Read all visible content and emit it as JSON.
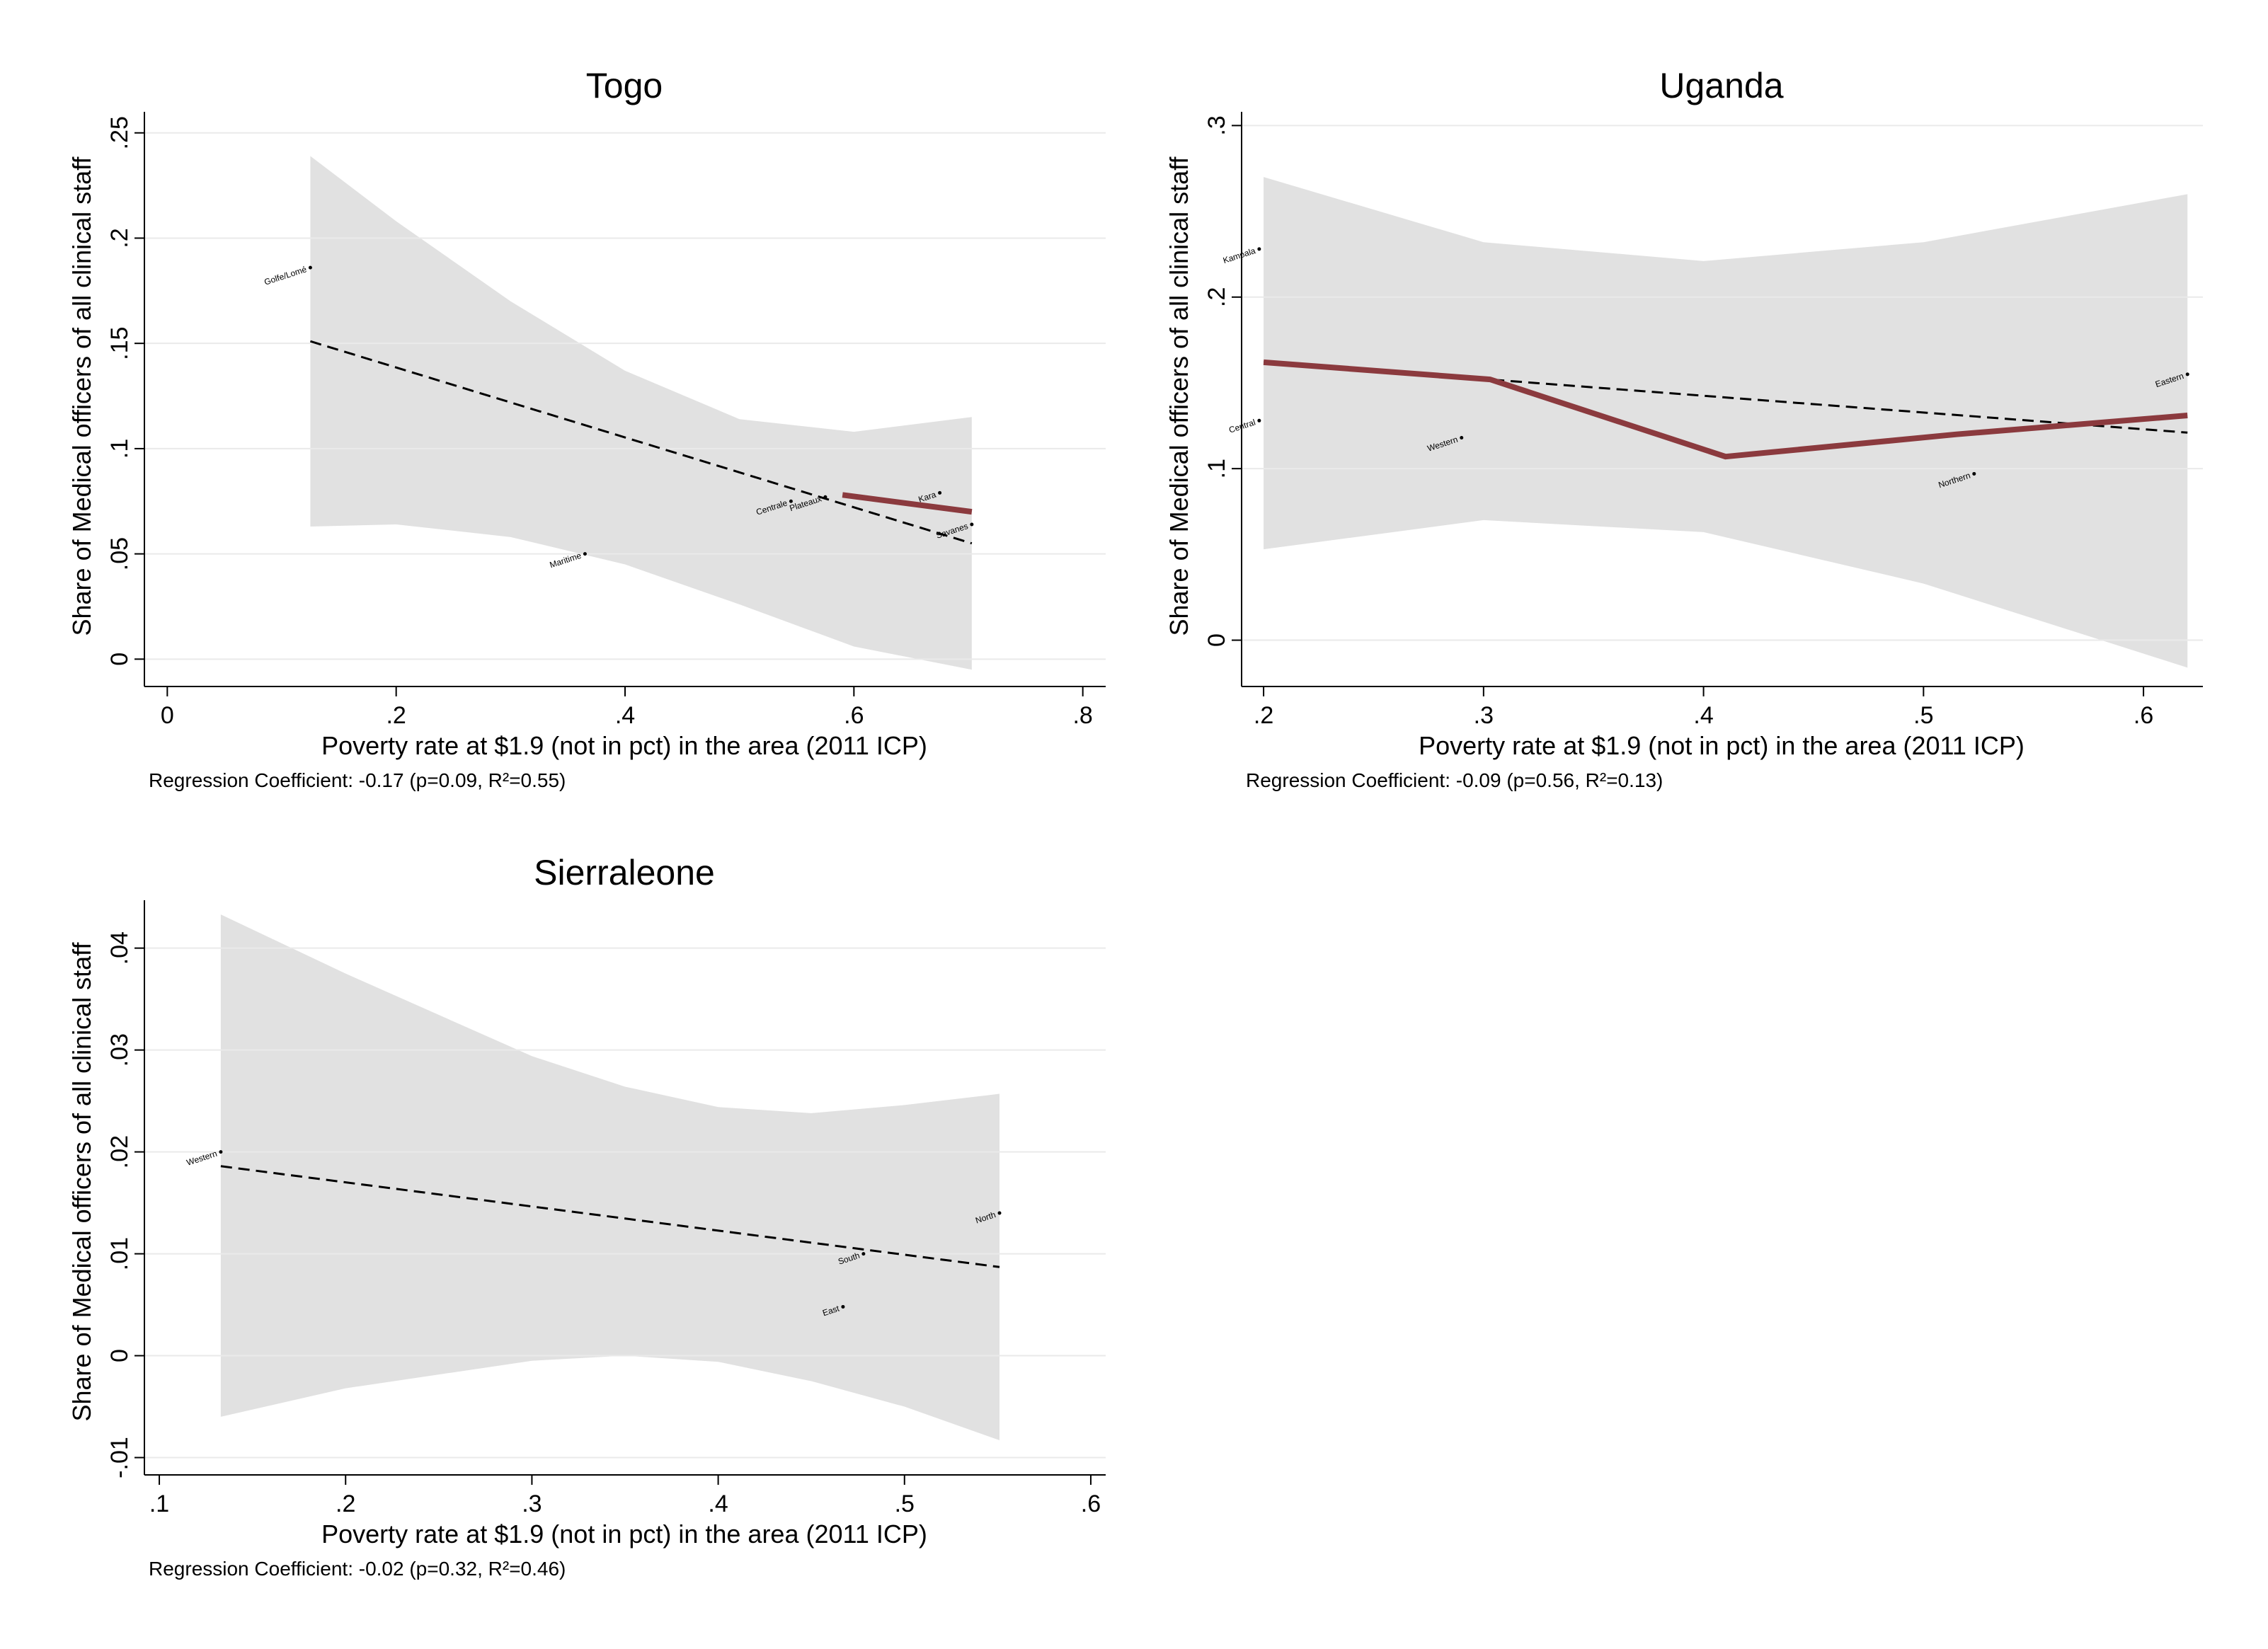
{
  "colors": {
    "band": "#e1e1e1",
    "grid": "#eaeaea",
    "fit": "#000000",
    "lowess": "#8b3a3e",
    "axis": "#000000"
  },
  "chart_data": [
    {
      "type": "scatter",
      "title": "Togo",
      "xlabel": "Poverty rate at $1.9 (not in pct) in the area (2011 ICP)",
      "ylabel": "Share of Medical officers of all clinical staff",
      "note": "Regression Coefficient: -0.17 (p=0.09, R²=0.55)",
      "xlim": [
        -0.02,
        0.82
      ],
      "ylim": [
        -0.013,
        0.26
      ],
      "xticks": [
        0,
        0.2,
        0.4,
        0.6,
        0.8
      ],
      "xtick_labels": [
        "0",
        ".2",
        ".4",
        ".6",
        ".8"
      ],
      "yticks": [
        0,
        0.05,
        0.1,
        0.15,
        0.2,
        0.25
      ],
      "ytick_labels": [
        "0",
        ".05",
        ".1",
        ".15",
        ".2",
        ".25"
      ],
      "points": [
        {
          "label": "Golfe/Lomé",
          "x": 0.125,
          "y": 0.186
        },
        {
          "label": "Maritime",
          "x": 0.365,
          "y": 0.05
        },
        {
          "label": "Centrale",
          "x": 0.545,
          "y": 0.075
        },
        {
          "label": "Plateaux",
          "x": 0.575,
          "y": 0.077
        },
        {
          "label": "Kara",
          "x": 0.675,
          "y": 0.079
        },
        {
          "label": "Savanes",
          "x": 0.703,
          "y": 0.064
        }
      ],
      "fit_line": {
        "x": [
          0.125,
          0.703
        ],
        "y": [
          0.151,
          0.055
        ]
      },
      "ci_band": {
        "x": [
          0.125,
          0.2,
          0.3,
          0.4,
          0.5,
          0.6,
          0.703
        ],
        "upper": [
          0.239,
          0.208,
          0.17,
          0.137,
          0.114,
          0.108,
          0.115
        ],
        "lower": [
          0.063,
          0.064,
          0.058,
          0.045,
          0.026,
          0.006,
          -0.005
        ]
      },
      "lowess_line": {
        "x": [
          0.59,
          0.703
        ],
        "y": [
          0.078,
          0.07
        ]
      },
      "grid": true
    },
    {
      "type": "scatter",
      "title": "Uganda",
      "xlabel": "Poverty rate at $1.9 (not in pct) in the area (2011 ICP)",
      "ylabel": "Share of Medical officers of all clinical staff",
      "note": "Regression Coefficient: -0.09 (p=0.56, R²=0.13)",
      "xlim": [
        0.19,
        0.627
      ],
      "ylim": [
        -0.027,
        0.308
      ],
      "xticks": [
        0.2,
        0.3,
        0.4,
        0.5,
        0.6
      ],
      "xtick_labels": [
        ".2",
        ".3",
        ".4",
        ".5",
        ".6"
      ],
      "yticks": [
        0,
        0.1,
        0.2,
        0.3
      ],
      "ytick_labels": [
        "0",
        ".1",
        ".2",
        ".3"
      ],
      "points": [
        {
          "label": "Kampala",
          "x": 0.198,
          "y": 0.228
        },
        {
          "label": "Central",
          "x": 0.198,
          "y": 0.128
        },
        {
          "label": "Western",
          "x": 0.29,
          "y": 0.118
        },
        {
          "label": "Northern",
          "x": 0.523,
          "y": 0.097
        },
        {
          "label": "Eastern",
          "x": 0.62,
          "y": 0.155
        }
      ],
      "fit_line": {
        "x": [
          0.2,
          0.62
        ],
        "y": [
          0.162,
          0.121
        ]
      },
      "ci_band": {
        "x": [
          0.2,
          0.3,
          0.4,
          0.5,
          0.62
        ],
        "upper": [
          0.27,
          0.232,
          0.221,
          0.232,
          0.26
        ],
        "lower": [
          0.053,
          0.07,
          0.063,
          0.033,
          -0.016
        ]
      },
      "lowess_line": {
        "x": [
          0.2,
          0.303,
          0.41,
          0.515,
          0.62
        ],
        "y": [
          0.162,
          0.152,
          0.107,
          0.12,
          0.131
        ]
      },
      "grid": true
    },
    {
      "type": "scatter",
      "title": "Sierraleone",
      "xlabel": "Poverty rate at $1.9 (not in pct) in the area (2011 ICP)",
      "ylabel": "Share of Medical officers of all clinical staff",
      "note": "Regression Coefficient: -0.02 (p=0.32, R²=0.46)",
      "xlim": [
        0.092,
        0.608
      ],
      "ylim": [
        -0.0117,
        0.0447
      ],
      "xticks": [
        0.1,
        0.2,
        0.3,
        0.4,
        0.5,
        0.6
      ],
      "xtick_labels": [
        ".1",
        ".2",
        ".3",
        ".4",
        ".5",
        ".6"
      ],
      "yticks": [
        -0.01,
        0,
        0.01,
        0.02,
        0.03,
        0.04
      ],
      "ytick_labels": [
        "-.01",
        "0",
        ".01",
        ".02",
        ".03",
        ".04"
      ],
      "points": [
        {
          "label": "Western",
          "x": 0.133,
          "y": 0.02
        },
        {
          "label": "South",
          "x": 0.478,
          "y": 0.01
        },
        {
          "label": "East",
          "x": 0.467,
          "y": 0.0048
        },
        {
          "label": "North",
          "x": 0.551,
          "y": 0.014
        }
      ],
      "fit_line": {
        "x": [
          0.133,
          0.551
        ],
        "y": [
          0.0186,
          0.0087
        ]
      },
      "ci_band": {
        "x": [
          0.133,
          0.2,
          0.3,
          0.35,
          0.4,
          0.45,
          0.5,
          0.551
        ],
        "upper": [
          0.0433,
          0.0375,
          0.0294,
          0.0264,
          0.0244,
          0.0238,
          0.0246,
          0.0257
        ],
        "lower": [
          -0.006,
          -0.0032,
          -0.0005,
          0.0,
          -0.0006,
          -0.0025,
          -0.005,
          -0.0083
        ]
      },
      "grid": true
    }
  ]
}
